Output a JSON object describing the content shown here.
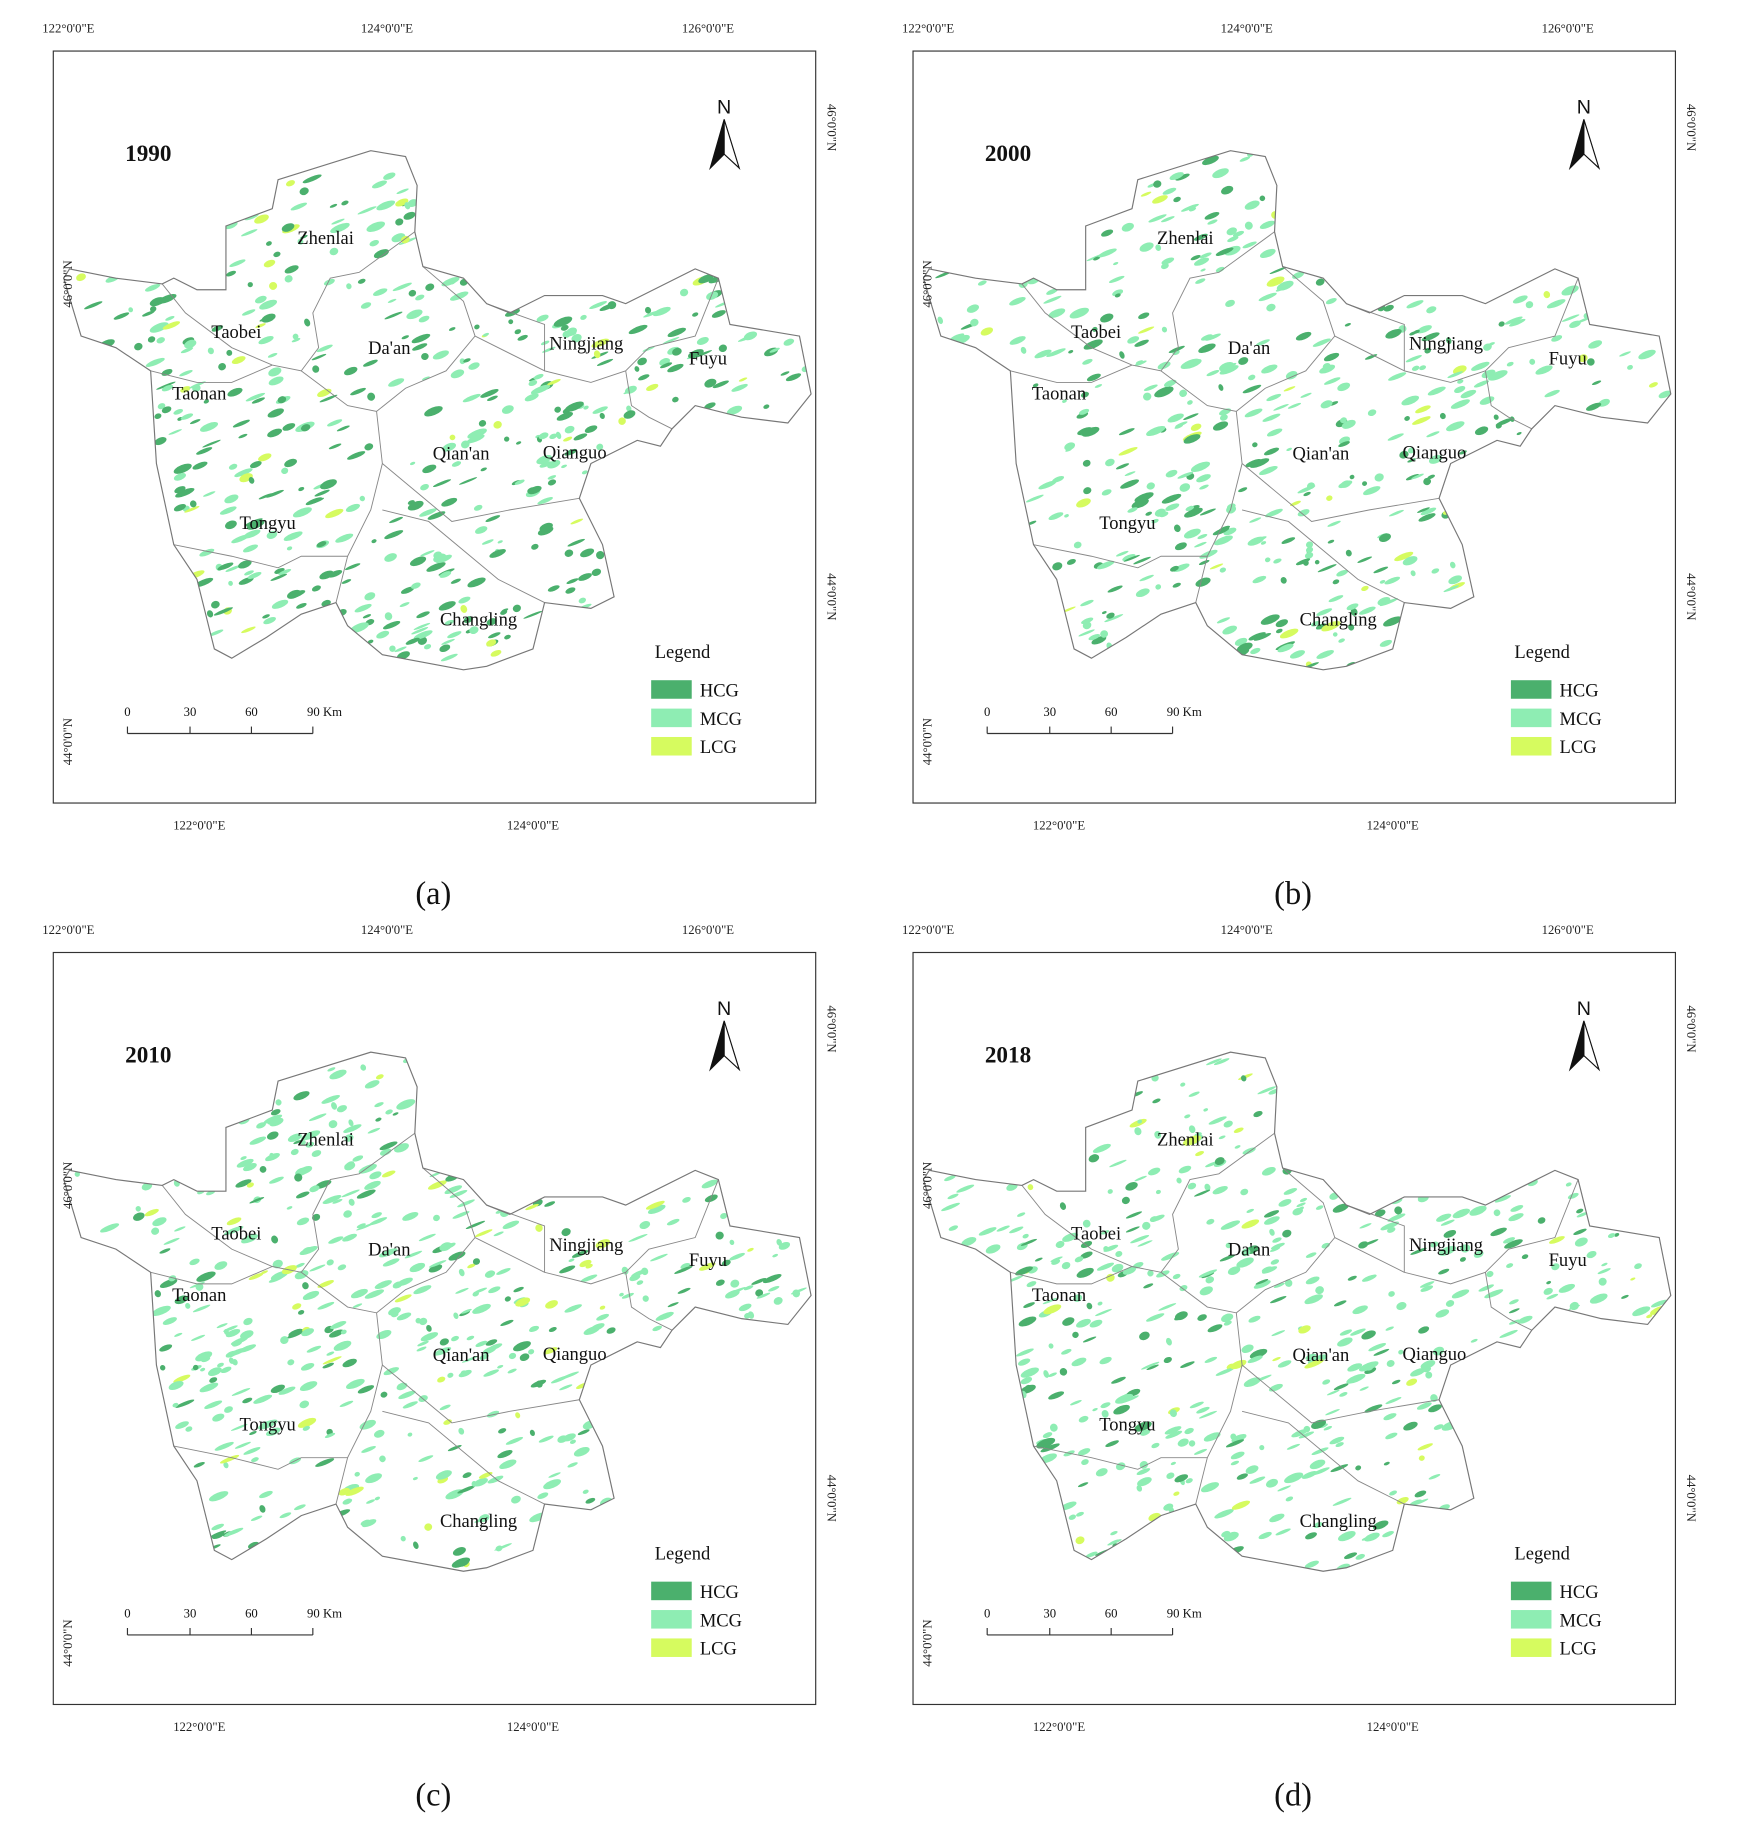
{
  "panels": [
    {
      "year": "1990",
      "caption": "(a)"
    },
    {
      "year": "2000",
      "caption": "(b)"
    },
    {
      "year": "2010",
      "caption": "(c)"
    },
    {
      "year": "2018",
      "caption": "(d)"
    }
  ],
  "map": {
    "top_lon_labels": [
      "122°0'0\"E",
      "124°0'0\"E",
      "126°0'0\"E"
    ],
    "bottom_lon_labels": [
      "122°0'0\"E",
      "124°0'0\"E"
    ],
    "left_lat_labels": [
      "46°0'0\"N",
      "44°0'0\"N"
    ],
    "right_lat_labels": [
      "46°0'0\"N",
      "44°0'0\"N"
    ],
    "north": "N",
    "counties": [
      {
        "name": "Zhenlai"
      },
      {
        "name": "Taobei"
      },
      {
        "name": "Da'an"
      },
      {
        "name": "Ningjiang"
      },
      {
        "name": "Fuyu"
      },
      {
        "name": "Taonan"
      },
      {
        "name": "Qian'an"
      },
      {
        "name": "Qianguo"
      },
      {
        "name": "Tongyu"
      },
      {
        "name": "Changling"
      }
    ],
    "legend": {
      "title": "Legend",
      "items": [
        {
          "name": "HCG",
          "color": "#4bb06d"
        },
        {
          "name": "MCG",
          "color": "#8eedb3"
        },
        {
          "name": "LCG",
          "color": "#d6fb5f"
        }
      ]
    },
    "scale_bar_labels": [
      "0",
      "30",
      "60",
      "90 Km"
    ]
  }
}
